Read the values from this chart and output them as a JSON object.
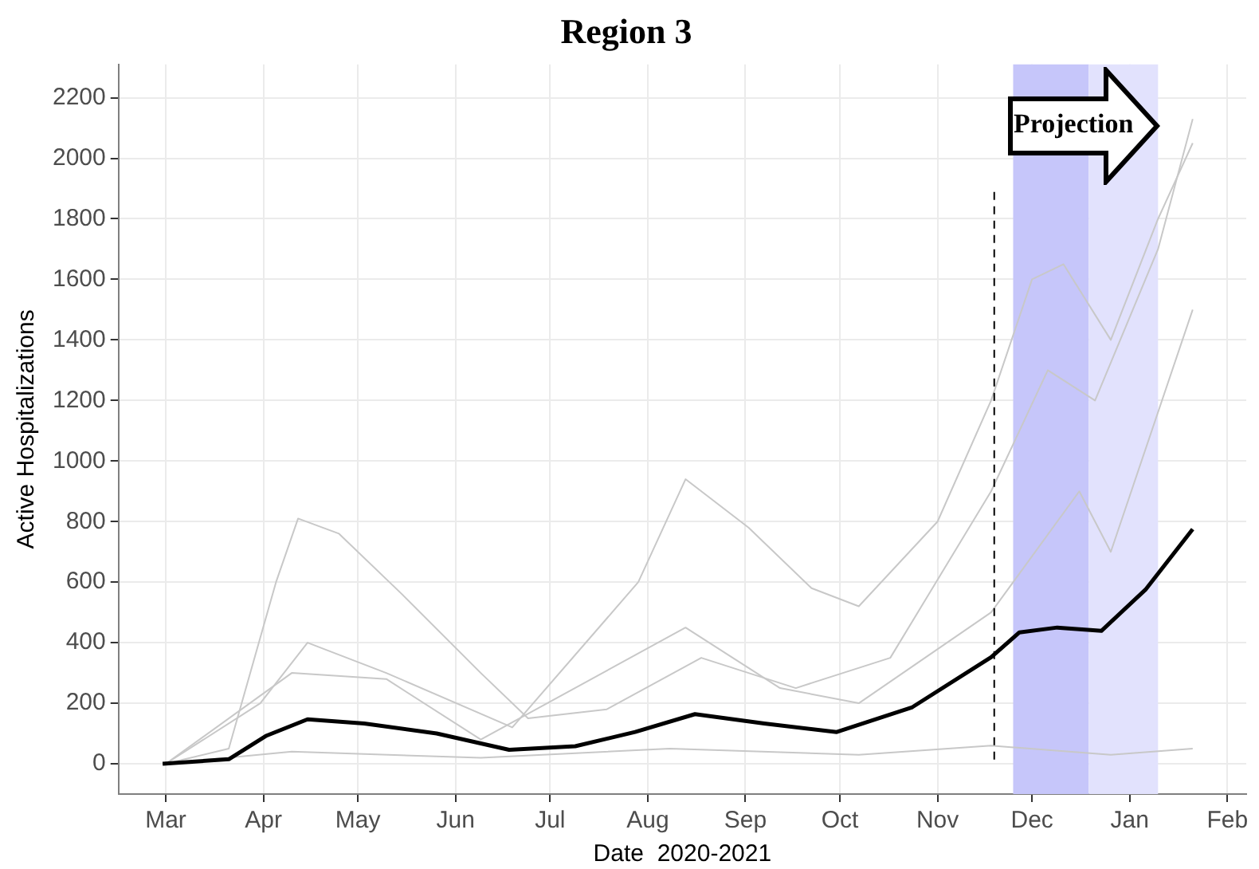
{
  "chart_data": {
    "type": "line",
    "title": "Region 3",
    "xlabel": "Date  2020-2021",
    "ylabel": "Active Hospitalizations",
    "xlim": [
      "2020-02-15",
      "2021-02-07"
    ],
    "xticks": [
      {
        "value": "2020-03-01",
        "label": "Mar"
      },
      {
        "value": "2020-04-01",
        "label": "Apr"
      },
      {
        "value": "2020-05-01",
        "label": "May"
      },
      {
        "value": "2020-06-01",
        "label": "Jun"
      },
      {
        "value": "2020-07-01",
        "label": "Jul"
      },
      {
        "value": "2020-08-01",
        "label": "Aug"
      },
      {
        "value": "2020-09-01",
        "label": "Sep"
      },
      {
        "value": "2020-10-01",
        "label": "Oct"
      },
      {
        "value": "2020-11-01",
        "label": "Nov"
      },
      {
        "value": "2020-12-01",
        "label": "Dec"
      },
      {
        "value": "2021-01-01",
        "label": "Jan"
      },
      {
        "value": "2021-02-01",
        "label": "Feb"
      }
    ],
    "ylim": [
      -100,
      2310
    ],
    "yticks": [
      0,
      200,
      400,
      600,
      800,
      1000,
      1200,
      1400,
      1600,
      1800,
      2000,
      2200
    ],
    "grid": true,
    "legend": false,
    "marker": "none",
    "line_style": "solid",
    "series": [
      {
        "color": "#c8c8c8",
        "x": [
          "2020-03-01",
          "2020-03-21",
          "2020-04-05",
          "2020-04-12",
          "2020-04-25",
          "2020-05-15",
          "2020-06-09",
          "2020-06-24",
          "2020-07-19",
          "2020-08-18",
          "2020-09-17",
          "2020-10-17",
          "2020-11-18",
          "2020-12-06",
          "2020-12-21",
          "2021-01-10",
          "2021-01-21"
        ],
        "values": [
          0,
          50,
          600,
          810,
          760,
          560,
          300,
          150,
          180,
          350,
          250,
          350,
          900,
          1300,
          1200,
          1700,
          2130
        ]
      },
      {
        "color": "#c8c8c8",
        "x": [
          "2020-03-01",
          "2020-03-31",
          "2020-04-15",
          "2020-05-10",
          "2020-06-19",
          "2020-07-29",
          "2020-08-13",
          "2020-09-02",
          "2020-09-22",
          "2020-10-07",
          "2020-11-01",
          "2020-11-18",
          "2020-12-01",
          "2020-12-11",
          "2020-12-26",
          "2021-01-10",
          "2021-01-21"
        ],
        "values": [
          0,
          200,
          400,
          300,
          120,
          600,
          940,
          780,
          580,
          520,
          800,
          1200,
          1600,
          1650,
          1400,
          1800,
          2050
        ]
      },
      {
        "color": "#c8c8c8",
        "x": [
          "2020-03-01",
          "2020-04-10",
          "2020-05-10",
          "2020-06-09",
          "2020-08-13",
          "2020-09-12",
          "2020-10-07",
          "2020-11-18",
          "2020-12-16",
          "2020-12-26",
          "2021-01-21"
        ],
        "values": [
          0,
          300,
          280,
          80,
          450,
          250,
          200,
          500,
          900,
          700,
          1500
        ]
      },
      {
        "color": "#c8c8c8",
        "x": [
          "2020-03-01",
          "2020-04-10",
          "2020-06-09",
          "2020-08-08",
          "2020-10-07",
          "2020-11-18",
          "2020-12-26",
          "2021-01-21"
        ],
        "values": [
          0,
          40,
          20,
          50,
          30,
          60,
          30,
          50
        ]
      },
      {
        "color": "#000000",
        "x": [
          "2020-02-29",
          "2020-03-21",
          "2020-04-02",
          "2020-04-15",
          "2020-05-03",
          "2020-05-26",
          "2020-06-18",
          "2020-07-09",
          "2020-07-28",
          "2020-08-16",
          "2020-09-07",
          "2020-09-30",
          "2020-10-24",
          "2020-11-18",
          "2020-11-27",
          "2020-12-09",
          "2020-12-23",
          "2021-01-06",
          "2021-01-21"
        ],
        "values": [
          0,
          15,
          93,
          147,
          133,
          100,
          46,
          58,
          105,
          164,
          133,
          105,
          187,
          352,
          434,
          450,
          439,
          575,
          775
        ]
      }
    ],
    "ref_lines": [
      {
        "axis": "x",
        "value": "2020-11-19",
        "line_style": "dashed",
        "color": "#000000"
      }
    ],
    "bands": [
      {
        "axis": "x",
        "from": "2020-11-25",
        "to": "2020-12-19",
        "color": "#c6c6fa"
      },
      {
        "axis": "x",
        "from": "2020-12-19",
        "to": "2021-01-10",
        "color": "#e2e2fd"
      }
    ],
    "annotations": [
      "Projection"
    ]
  }
}
